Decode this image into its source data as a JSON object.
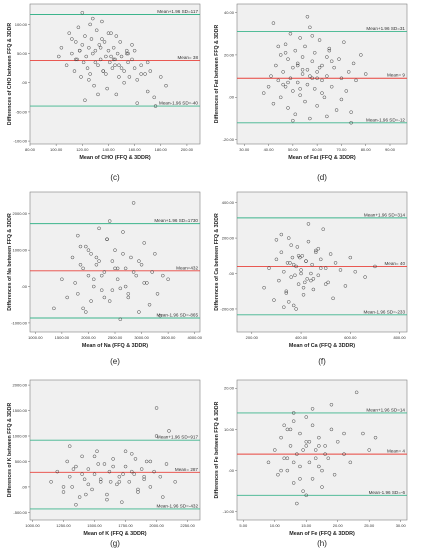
{
  "chart_data": [
    {
      "type": "scatter",
      "panel_label": "(c)",
      "xlabel": "Mean of CHO (FFQ & 3DDR)",
      "ylabel": "Differences of CHO between FFQ & 3DDR",
      "xlim": [
        80,
        210
      ],
      "ylim": [
        -105,
        135
      ],
      "xticks": [
        80,
        100,
        120,
        140,
        160,
        180,
        200
      ],
      "xtick_labels": [
        "80.00",
        "100.00",
        "120.00",
        "140.00",
        "160.00",
        "180.00",
        "200.00"
      ],
      "yticks": [
        -100,
        -50,
        0,
        50,
        100
      ],
      "ytick_labels": [
        "-100.00",
        "-50.00",
        ".00",
        "50.00",
        "100.00"
      ],
      "lines": [
        {
          "label": "Mean+1.96 SD=117",
          "y": 117,
          "color": "#3cb48c"
        },
        {
          "label": "Mean= 38",
          "y": 38,
          "color": "#e8433c"
        },
        {
          "label": "Mean-1.96 SD=-40",
          "y": -40,
          "color": "#3cb48c"
        }
      ],
      "x": [
        102,
        104,
        108,
        110,
        112,
        114,
        115,
        116,
        117,
        118,
        119,
        120,
        121,
        122,
        123,
        124,
        125,
        126,
        127,
        128,
        129,
        130,
        131,
        132,
        133,
        134,
        135,
        136,
        137,
        138,
        139,
        140,
        141,
        142,
        143,
        144,
        145,
        146,
        147,
        148,
        149,
        150,
        152,
        154,
        155,
        156,
        158,
        160,
        162,
        165,
        168,
        170,
        172,
        175,
        180,
        184,
        112,
        118,
        122,
        126,
        130,
        134,
        138,
        142,
        146,
        150,
        154,
        158,
        162,
        128,
        136,
        144,
        152,
        160,
        115,
        125,
        135,
        145,
        155,
        165,
        120,
        132,
        140,
        148,
        170,
        176
      ],
      "y": [
        45,
        60,
        30,
        85,
        50,
        20,
        70,
        40,
        95,
        55,
        10,
        65,
        35,
        80,
        45,
        25,
        60,
        15,
        75,
        50,
        -5,
        55,
        90,
        30,
        65,
        40,
        105,
        20,
        70,
        45,
        -10,
        55,
        35,
        85,
        25,
        60,
        40,
        -20,
        50,
        30,
        70,
        45,
        20,
        55,
        35,
        10,
        40,
        25,
        5,
        30,
        15,
        -15,
        20,
        -25,
        10,
        -5,
        75,
        55,
        -30,
        100,
        35,
        60,
        15,
        45,
        80,
        25,
        50,
        65,
        -35,
        110,
        20,
        40,
        0,
        55,
        40,
        5,
        75,
        30,
        50,
        15,
        120,
        -20,
        85,
        10,
        35,
        -40
      ]
    },
    {
      "type": "scatter",
      "panel_label": "(d)",
      "xlabel": "Mean of Fat (FFQ & 3DDR)",
      "ylabel": "Differences of Fat between FFQ & 3DDR",
      "xlim": [
        27,
        97
      ],
      "ylim": [
        -22,
        44
      ],
      "xticks": [
        30,
        40,
        50,
        60,
        70,
        80,
        90
      ],
      "xtick_labels": [
        "30.00",
        "40.00",
        "50.00",
        "60.00",
        "70.00",
        "80.00",
        "90.00"
      ],
      "yticks": [
        -20,
        0,
        20,
        40
      ],
      "ytick_labels": [
        "-20.00",
        ".00",
        "20.00",
        "40.00"
      ],
      "lines": [
        {
          "label": "Mean+1.96 SD=31",
          "y": 31,
          "color": "#3cb48c"
        },
        {
          "label": "Mean= 9",
          "y": 9,
          "color": "#e8433c"
        },
        {
          "label": "Mean-1.96 SD=-12",
          "y": -12,
          "color": "#3cb48c"
        }
      ],
      "x": [
        38,
        40,
        41,
        42,
        43,
        44,
        45,
        45,
        46,
        47,
        47,
        48,
        48,
        49,
        49,
        50,
        50,
        51,
        51,
        52,
        52,
        53,
        53,
        54,
        54,
        55,
        55,
        56,
        56,
        57,
        57,
        58,
        58,
        59,
        59,
        60,
        60,
        61,
        62,
        62,
        63,
        64,
        64,
        65,
        66,
        67,
        68,
        69,
        70,
        71,
        72,
        73,
        74,
        75,
        76,
        78,
        80,
        42,
        46,
        50,
        54,
        58,
        62,
        66,
        70,
        44,
        48,
        52,
        56,
        60,
        64,
        47,
        53,
        57,
        61,
        65,
        74
      ],
      "y": [
        2,
        5,
        10,
        -3,
        15,
        8,
        20,
        0,
        12,
        25,
        5,
        -5,
        18,
        9,
        30,
        3,
        14,
        22,
        -8,
        7,
        16,
        28,
        1,
        11,
        19,
        -2,
        24,
        6,
        13,
        33,
        -10,
        9,
        17,
        4,
        21,
        -4,
        12,
        27,
        8,
        15,
        0,
        19,
        10,
        23,
        5,
        14,
        -6,
        18,
        9,
        26,
        3,
        12,
        -7,
        16,
        8,
        20,
        11,
        35,
        6,
        -11,
        13,
        29,
        2,
        17,
        -1,
        24,
        7,
        15,
        38,
        9,
        -9,
        21,
        4,
        10,
        14,
        22,
        -12
      ]
    },
    {
      "type": "scatter",
      "panel_label": "(e)",
      "xlabel": "Mean of Na (FFQ & 3DDR)",
      "ylabel": "Differences of Na between FFQ & 3DDR",
      "xlim": [
        900,
        4100
      ],
      "ylim": [
        -1250,
        2600
      ],
      "xticks": [
        1000,
        1500,
        2000,
        2500,
        3000,
        3500,
        4000
      ],
      "xtick_labels": [
        "1000.00",
        "1500.00",
        "2000.00",
        "2500.00",
        "3000.00",
        "3500.00",
        "4000.00"
      ],
      "yticks": [
        -1000,
        0,
        1000,
        2000
      ],
      "ytick_labels": [
        "-1000.00",
        ".00",
        "1000.00",
        "2000.00"
      ],
      "lines": [
        {
          "label": "Mean+1.96 SD=1730",
          "y": 1730,
          "color": "#3cb48c"
        },
        {
          "label": "Mean=432",
          "y": 432,
          "color": "#e8433c"
        },
        {
          "label": "Mean-1.96 SD=-865",
          "y": -865,
          "color": "#3cb48c"
        }
      ],
      "x": [
        1350,
        1500,
        1600,
        1700,
        1750,
        1800,
        1850,
        1900,
        1950,
        2000,
        2050,
        2100,
        2150,
        2200,
        2250,
        2300,
        2350,
        2400,
        2450,
        2500,
        2550,
        2600,
        2650,
        2700,
        2750,
        2800,
        2850,
        2900,
        2950,
        3000,
        3050,
        3100,
        3150,
        3200,
        3250,
        3300,
        3400,
        1800,
        1900,
        2000,
        2100,
        2200,
        2300,
        2400,
        2500,
        2600,
        2700,
        1850,
        1950,
        2050,
        2150,
        2250,
        2350,
        2450,
        2550,
        2650,
        2750,
        2850,
        2950,
        3050,
        3350,
        3500
      ],
      "y": [
        -600,
        200,
        -300,
        800,
        100,
        -200,
        1100,
        500,
        -700,
        300,
        900,
        0,
        600,
        1600,
        -100,
        400,
        1300,
        -400,
        700,
        1000,
        200,
        -50,
        1500,
        500,
        -300,
        800,
        2300,
        300,
        -700,
        600,
        1200,
        100,
        -500,
        400,
        900,
        -200,
        300,
        1400,
        -600,
        1000,
        200,
        700,
        -300,
        1800,
        500,
        -900,
        0,
        600,
        1100,
        -400,
        800,
        300,
        1300,
        -100,
        500,
        900,
        -200,
        400,
        700,
        100,
        -800,
        200
      ]
    },
    {
      "type": "scatter",
      "panel_label": "(f)",
      "xlabel": "Mean of Ca (FFQ & 3DDR)",
      "ylabel": "Differences of Ca between FFQ & 3DDR",
      "xlim": [
        140,
        830
      ],
      "ylim": [
        -330,
        460
      ],
      "xticks": [
        200,
        400,
        600,
        800
      ],
      "xtick_labels": [
        "200.00",
        "400.00",
        "600.00",
        "800.00"
      ],
      "yticks": [
        -200,
        0,
        200,
        400
      ],
      "ytick_labels": [
        "-200.00",
        ".00",
        "200.00",
        "400.00"
      ],
      "lines": [
        {
          "label": "Mean+1.96 SD=314",
          "y": 314,
          "color": "#3cb48c"
        },
        {
          "label": "Mean= 40",
          "y": 40,
          "color": "#e8433c"
        },
        {
          "label": "Mean-1.96 SD=-233",
          "y": -233,
          "color": "#3cb48c"
        }
      ],
      "x": [
        250,
        270,
        290,
        300,
        310,
        320,
        330,
        340,
        345,
        350,
        360,
        365,
        370,
        380,
        385,
        390,
        400,
        405,
        410,
        420,
        425,
        430,
        440,
        445,
        450,
        460,
        470,
        480,
        490,
        500,
        510,
        520,
        530,
        540,
        560,
        580,
        600,
        620,
        660,
        700,
        320,
        340,
        360,
        380,
        400,
        420,
        440,
        460,
        480,
        500,
        350,
        370,
        390,
        410,
        430,
        450,
        470,
        300,
        330,
        355,
        375,
        395,
        415
      ],
      "y": [
        -80,
        30,
        -150,
        80,
        -40,
        120,
        10,
        -100,
        60,
        200,
        -20,
        90,
        -180,
        40,
        150,
        -60,
        20,
        100,
        -120,
        70,
        -30,
        180,
        0,
        50,
        -90,
        130,
        -10,
        80,
        250,
        30,
        -50,
        110,
        -140,
        60,
        20,
        -70,
        90,
        10,
        -20,
        40,
        220,
        -110,
        160,
        -200,
        0,
        70,
        -40,
        120,
        30,
        -60,
        -160,
        50,
        100,
        -80,
        280,
        -30,
        140,
        190,
        -190,
        60,
        -10,
        90,
        -50
      ]
    },
    {
      "type": "scatter",
      "panel_label": "(g)",
      "xlabel": "Mean of K (FFQ & 3DDR)",
      "ylabel": "Differences of K between FFQ & 3DDR",
      "xlim": [
        980,
        2350
      ],
      "ylim": [
        -650,
        2100
      ],
      "xticks": [
        1000,
        1250,
        1500,
        1750,
        2000,
        2250
      ],
      "xtick_labels": [
        "1000.00",
        "1250.00",
        "1500.00",
        "1750.00",
        "2000.00",
        "2250.00"
      ],
      "yticks": [
        -500,
        0,
        500,
        1000,
        1500,
        2000
      ],
      "ytick_labels": [
        "-500.00",
        ".00",
        "500.00",
        "1000.00",
        "1500.00",
        "2000.00"
      ],
      "lines": [
        {
          "label": "Mean+1.96 SD=917",
          "y": 917,
          "color": "#3cb48c"
        },
        {
          "label": "Mean= 287",
          "y": 287,
          "color": "#e8433c"
        },
        {
          "label": "Mean-1.96 SD=-432",
          "y": -432,
          "color": "#3cb48c"
        }
      ],
      "x": [
        1150,
        1200,
        1250,
        1280,
        1300,
        1320,
        1350,
        1380,
        1400,
        1420,
        1450,
        1480,
        1500,
        1520,
        1550,
        1580,
        1600,
        1620,
        1650,
        1680,
        1700,
        1720,
        1750,
        1780,
        1800,
        1820,
        1850,
        1880,
        1900,
        1920,
        1950,
        1980,
        2000,
        2030,
        2050,
        2080,
        2100,
        2150,
        1300,
        1350,
        1400,
        1450,
        1500,
        1550,
        1600,
        1650,
        1700,
        1750,
        1800,
        1850,
        1900,
        1950,
        2000,
        1250,
        1330,
        1430,
        1530,
        1630,
        1730,
        1830
      ],
      "y": [
        100,
        300,
        -100,
        500,
        200,
        0,
        400,
        -200,
        600,
        150,
        350,
        -50,
        250,
        700,
        100,
        450,
        -150,
        300,
        550,
        50,
        200,
        -300,
        400,
        100,
        650,
        250,
        -100,
        350,
        150,
        500,
        0,
        300,
        1000,
        200,
        -200,
        450,
        1100,
        100,
        800,
        -350,
        250,
        50,
        600,
        150,
        -250,
        400,
        100,
        700,
        300,
        -50,
        200,
        500,
        1550,
        0,
        350,
        -150,
        450,
        100,
        250,
        550
      ]
    },
    {
      "type": "scatter",
      "panel_label": "(h)",
      "xlabel": "Mean of Fe (FFQ & 3DDR)",
      "ylabel": "Differences of Fe between FFQ & 3DDR",
      "xlim": [
        4,
        31
      ],
      "ylim": [
        -12,
        22
      ],
      "xticks": [
        5,
        10,
        15,
        20,
        25,
        30
      ],
      "xtick_labels": [
        "5.00",
        "10.00",
        "15.00",
        "20.00",
        "25.00",
        "30.00"
      ],
      "yticks": [
        -10,
        0,
        10,
        20
      ],
      "ytick_labels": [
        "-10.00",
        ".00",
        "10.00",
        "20.00"
      ],
      "lines": [
        {
          "label": "Mean+1.96 SD=14",
          "y": 14,
          "color": "#3cb48c"
        },
        {
          "label": "Mean= 4",
          "y": 4,
          "color": "#e8433c"
        },
        {
          "label": "Mean-1.96 SD=-6",
          "y": -6,
          "color": "#3cb48c"
        }
      ],
      "x": [
        9,
        10,
        10.5,
        11,
        11.5,
        12,
        12,
        12.5,
        13,
        13,
        13.5,
        14,
        14,
        14.5,
        15,
        15,
        15.5,
        16,
        16,
        16.5,
        17,
        17.5,
        18,
        18.5,
        19,
        19.5,
        20,
        21,
        22,
        23,
        24,
        25,
        26,
        11,
        12,
        13,
        14,
        15,
        16,
        17,
        18,
        12.5,
        13.5,
        14.5,
        15.5,
        16.5,
        17.5,
        11.5,
        13,
        15,
        17,
        19,
        21
      ],
      "y": [
        2,
        5,
        -1,
        8,
        3,
        10,
        0,
        6,
        -3,
        12,
        4,
        1,
        9,
        -5,
        7,
        13,
        2,
        -2,
        11,
        5,
        8,
        -4,
        6,
        3,
        10,
        -1,
        7,
        4,
        2,
        19,
        9,
        5,
        8,
        0,
        3,
        14,
        -2,
        6,
        15,
        1,
        4,
        10,
        -8,
        5,
        7,
        3,
        0,
        11,
        2,
        -6,
        6,
        16,
        9
      ]
    }
  ]
}
